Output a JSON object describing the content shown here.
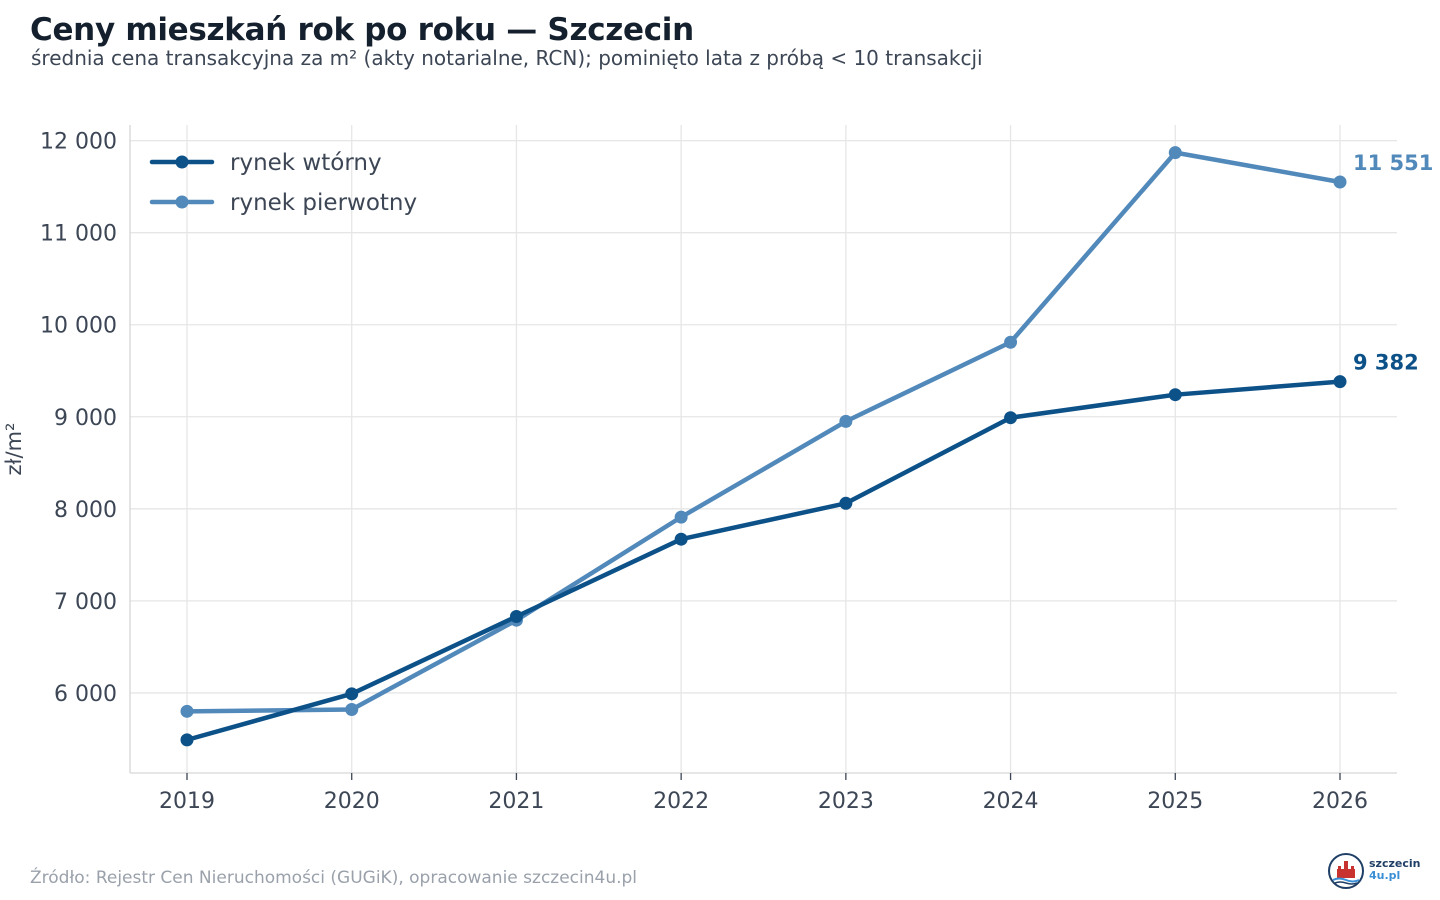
{
  "header": {
    "title": "Ceny mieszkań rok po roku — Szczecin",
    "subtitle": "średnia cena transakcyjna za m² (akty notarialne, RCN); pominięto lata z próbą < 10 transakcji"
  },
  "footer": {
    "source": "Źródło: Rejestr Cen Nieruchomości (GUGiK), opracowanie szczecin4u.pl",
    "logo_line1": "szczecin",
    "logo_line2": "4u.pl"
  },
  "chart_data": {
    "type": "line",
    "x": [
      2019,
      2020,
      2021,
      2022,
      2023,
      2024,
      2025,
      2026
    ],
    "ylabel": "zł/m²",
    "xlabel": "",
    "ylim": [
      5130,
      12170
    ],
    "yticks": [
      6000,
      7000,
      8000,
      9000,
      10000,
      11000,
      12000
    ],
    "ytick_labels": [
      "6 000",
      "7 000",
      "8 000",
      "9 000",
      "10 000",
      "11 000",
      "12 000"
    ],
    "grid": true,
    "legend_position": "top-left",
    "series": [
      {
        "name": "rynek wtórny",
        "color": "#0d5189",
        "values": [
          5490,
          5990,
          6830,
          7670,
          8060,
          8990,
          9240,
          9382
        ],
        "end_label": "9 382"
      },
      {
        "name": "rynek pierwotny",
        "color": "#5289bb",
        "values": [
          5800,
          5820,
          6790,
          7910,
          8950,
          9810,
          11870,
          11551
        ],
        "end_label": "11 551"
      }
    ]
  }
}
